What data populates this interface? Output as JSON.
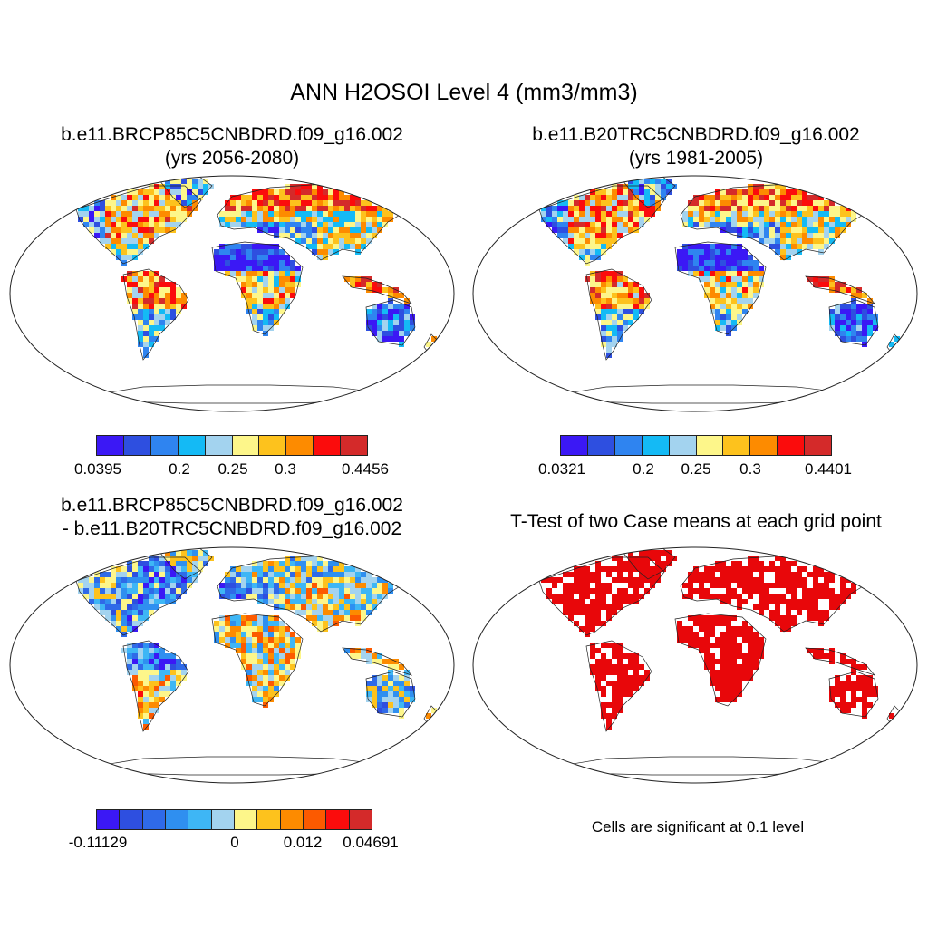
{
  "title": "ANN H2OSOI Level 4 (mm3/mm3)",
  "panels": [
    {
      "title_line1": "b.e11.BRCP85C5CNBDRD.f09_g16.002",
      "title_line2": "(yrs 2056-2080)",
      "colorbar": {
        "colors": [
          "#3b18f5",
          "#2e4fe0",
          "#2f84f0",
          "#14baf5",
          "#a3d3ef",
          "#fdf68a",
          "#fdc21d",
          "#fd8b00",
          "#fb0c0c",
          "#d42a2a"
        ],
        "tick_labels": [
          "0.0395",
          "0.2",
          "0.25",
          "0.3",
          "0.4456"
        ]
      }
    },
    {
      "title_line1": "b.e11.B20TRC5CNBDRD.f09_g16.002",
      "title_line2": "(yrs 1981-2005)",
      "colorbar": {
        "colors": [
          "#3b18f5",
          "#2e4fe0",
          "#2f84f0",
          "#14baf5",
          "#a3d3ef",
          "#fdf68a",
          "#fdc21d",
          "#fd8b00",
          "#fb0c0c",
          "#d42a2a"
        ],
        "tick_labels": [
          "0.0321",
          "0.2",
          "0.25",
          "0.3",
          "0.4401"
        ]
      }
    },
    {
      "title_line1": "b.e11.BRCP85C5CNBDRD.f09_g16.002",
      "title_line2": "- b.e11.B20TRC5CNBDRD.f09_g16.002",
      "colorbar": {
        "colors": [
          "#3b18f5",
          "#2e4fe0",
          "#2f6ae8",
          "#2f8ff0",
          "#3eb6f5",
          "#a3d3ef",
          "#fdf68a",
          "#fdc21d",
          "#fd8b00",
          "#fc5a00",
          "#fb0c0c",
          "#d42a2a"
        ],
        "tick_labels": [
          "-0.11129",
          "0",
          "0.012",
          "0.04691"
        ]
      }
    },
    {
      "title_line1": "T-Test of two Case means at each grid point",
      "note": "Cells are significant at 0.1 level",
      "significance_color": "#e8070a"
    }
  ]
}
